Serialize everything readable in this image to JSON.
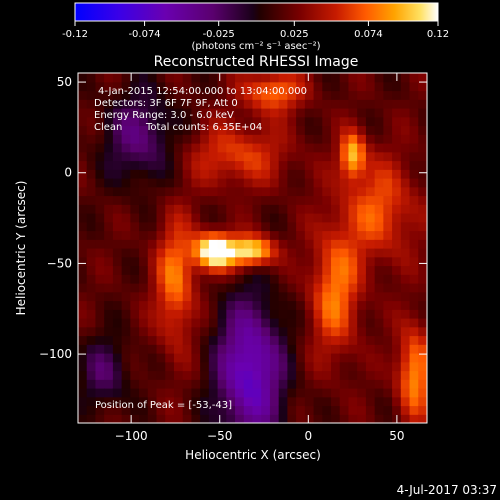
{
  "colorbar": {
    "min": -0.12,
    "max": 0.12,
    "ticks": [
      "-0.12",
      "-0.074",
      "-0.025",
      "0.025",
      "0.074",
      "0.12"
    ],
    "tick_values": [
      -0.12,
      -0.074,
      -0.025,
      0.025,
      0.074,
      0.12
    ],
    "unit_label": "(photons cm⁻² s⁻¹ asec⁻²)",
    "colors": {
      "negative": [
        "#0000ff",
        "#3a00e8",
        "#6a00b0",
        "#5a006e",
        "#1a0018"
      ],
      "positive": [
        "#220000",
        "#7a0000",
        "#c71b00",
        "#ff5a00",
        "#ffa300",
        "#ffe060",
        "#ffffff"
      ]
    }
  },
  "chart_data": {
    "type": "heatmap",
    "title": "Reconstructed RHESSI Image",
    "xlabel": "Heliocentric X (arcsec)",
    "ylabel": "Heliocentric Y (arcsec)",
    "xlim": [
      -130,
      67
    ],
    "ylim": [
      -138,
      55
    ],
    "xticks": [
      -100,
      -50,
      0,
      50
    ],
    "yticks": [
      -100,
      -50,
      0,
      50
    ],
    "grid": false,
    "annotations": [
      "4-Jan-2015 12:54:00.000 to 13:04:00.000",
      "Detectors: 3F 6F 7F 9F, Att 0",
      "Energy Range: 3.0 - 6.0 keV",
      "Clean",
      "Total counts: 6.35E+04"
    ],
    "peak_label": "Position of Peak = [-53,-43]",
    "peak": [
      -53,
      -43
    ],
    "sources": [
      {
        "x": -53,
        "y": -43,
        "sx": 8,
        "sy": 7,
        "amp": 0.12
      },
      {
        "x": -32,
        "y": -43,
        "sx": 9,
        "sy": 6,
        "amp": 0.1
      },
      {
        "x": 25,
        "y": 10,
        "sx": 5,
        "sy": 9,
        "amp": 0.075
      },
      {
        "x": -20,
        "y": 45,
        "sx": 12,
        "sy": 8,
        "amp": 0.06
      },
      {
        "x": -75,
        "y": -60,
        "sx": 8,
        "sy": 25,
        "amp": 0.06
      },
      {
        "x": 15,
        "y": -65,
        "sx": 10,
        "sy": 25,
        "amp": 0.06
      },
      {
        "x": 60,
        "y": -110,
        "sx": 7,
        "sy": 18,
        "amp": 0.07
      },
      {
        "x": -40,
        "y": 10,
        "sx": 20,
        "sy": 12,
        "amp": 0.045
      },
      {
        "x": 40,
        "y": -20,
        "sx": 15,
        "sy": 20,
        "amp": 0.05
      }
    ],
    "negatives": [
      {
        "x": -33,
        "y": -110,
        "sx": 13,
        "sy": 28,
        "amp": -0.09
      },
      {
        "x": -95,
        "y": 20,
        "sx": 14,
        "sy": 18,
        "amp": -0.05
      },
      {
        "x": -115,
        "y": -110,
        "sx": 10,
        "sy": 14,
        "amp": -0.04
      }
    ]
  },
  "timestamp": "4-Jul-2017 03:37"
}
